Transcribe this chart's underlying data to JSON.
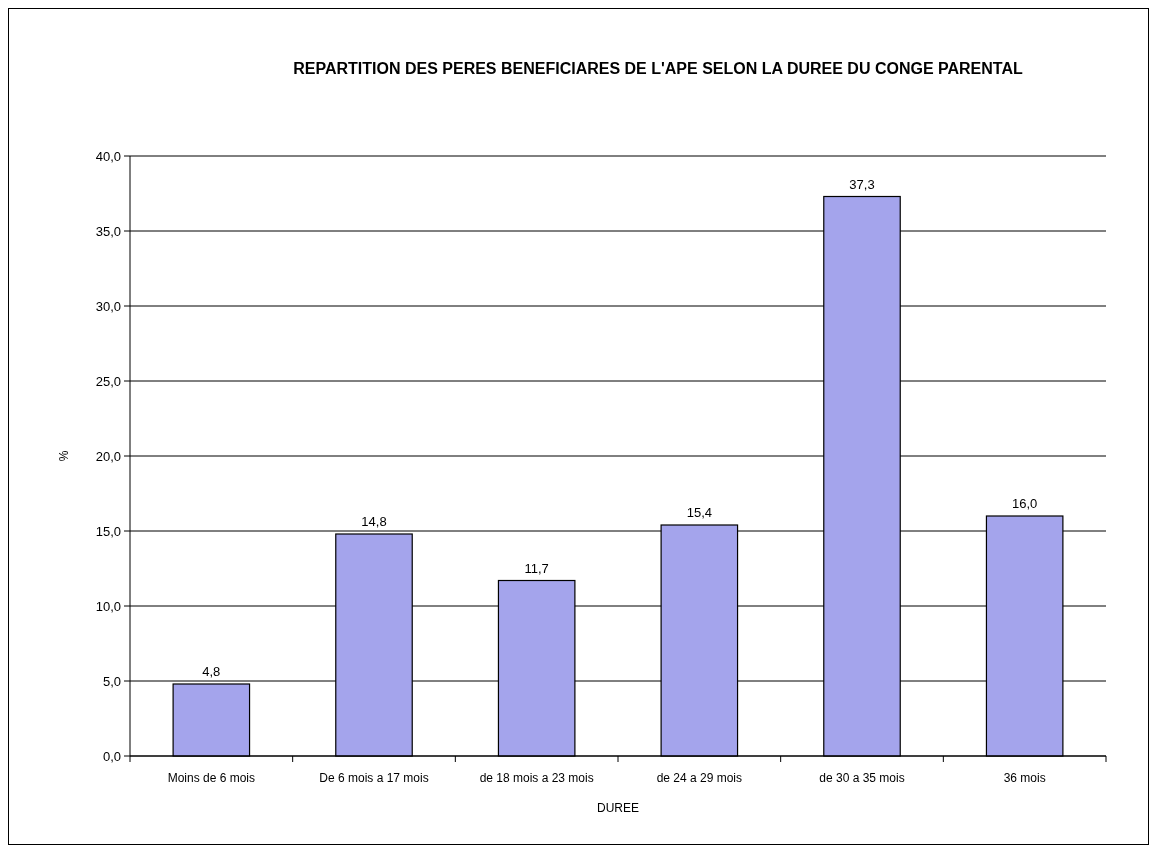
{
  "chart_data": {
    "type": "bar",
    "title": "REPARTITION DES PERES BENEFICIARES DE L'APE SELON LA DUREE DU CONGE PARENTAL",
    "xlabel": "DUREE",
    "ylabel": "%",
    "categories": [
      "Moins de 6 mois",
      "De 6 mois a 17 mois",
      "de 18 mois a 23 mois",
      "de 24 a 29 mois",
      "de 30 a 35 mois",
      "36 mois"
    ],
    "values": [
      4.8,
      14.8,
      11.7,
      15.4,
      37.3,
      16.0
    ],
    "value_labels": [
      "4,8",
      "14,8",
      "11,7",
      "15,4",
      "37,3",
      "16,0"
    ],
    "color": "#a4a4ec",
    "ylim": [
      0,
      40
    ],
    "yticks": [
      {
        "value": 0,
        "label": "0,0"
      },
      {
        "value": 5,
        "label": "5,0"
      },
      {
        "value": 10,
        "label": "10,0"
      },
      {
        "value": 15,
        "label": "15,0"
      },
      {
        "value": 20,
        "label": "20,0"
      },
      {
        "value": 25,
        "label": "25,0"
      },
      {
        "value": 30,
        "label": "30,0"
      },
      {
        "value": 35,
        "label": "35,0"
      },
      {
        "value": 40,
        "label": "40,0"
      }
    ],
    "grid": "y"
  }
}
